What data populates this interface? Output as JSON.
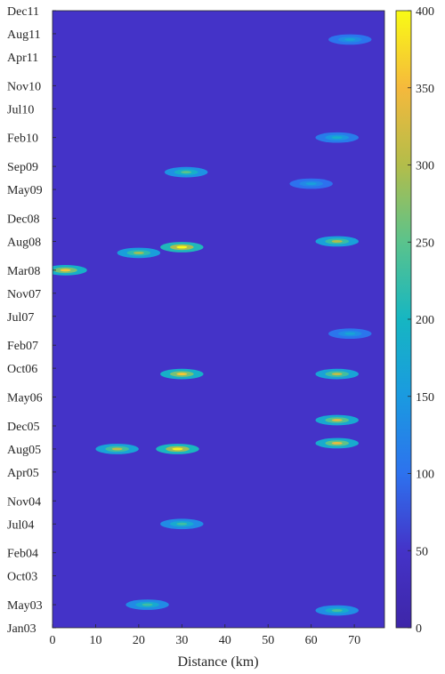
{
  "chart_data": {
    "type": "heatmap",
    "title": "",
    "xlabel": "Distance (km)",
    "ylabel": "",
    "xlim": [
      0,
      77
    ],
    "ylim": [
      "Jan03",
      "Dec11"
    ],
    "x_ticks": [
      0,
      10,
      20,
      30,
      40,
      50,
      60,
      70
    ],
    "y_ticks": [
      "Jan03",
      "May03",
      "Oct03",
      "Feb04",
      "Jul04",
      "Nov04",
      "Apr05",
      "Aug05",
      "Dec05",
      "May06",
      "Oct06",
      "Feb07",
      "Jul07",
      "Nov07",
      "Mar08",
      "Aug08",
      "Dec08",
      "May09",
      "Sep09",
      "Feb10",
      "Jul10",
      "Nov10",
      "Apr11",
      "Aug11",
      "Dec11"
    ],
    "colorbar": {
      "min": 0,
      "max": 400,
      "ticks": [
        0,
        50,
        100,
        150,
        200,
        250,
        300,
        350,
        400
      ],
      "colormap": "parula"
    },
    "background_value": 50,
    "hotspots": [
      {
        "x": 29,
        "y": "Aug05",
        "value": 390
      },
      {
        "x": 15,
        "y": "Aug05",
        "value": 310
      },
      {
        "x": 66,
        "y": "Sep05",
        "value": 340
      },
      {
        "x": 66,
        "y": "Jan06",
        "value": 330
      },
      {
        "x": 30,
        "y": "Sep06",
        "value": 360
      },
      {
        "x": 66,
        "y": "Sep06",
        "value": 310
      },
      {
        "x": 30,
        "y": "Jul08",
        "value": 400
      },
      {
        "x": 20,
        "y": "Jun08",
        "value": 290
      },
      {
        "x": 66,
        "y": "Aug08",
        "value": 300
      },
      {
        "x": 3,
        "y": "Mar08",
        "value": 360
      },
      {
        "x": 31,
        "y": "Aug09",
        "value": 250
      },
      {
        "x": 30,
        "y": "Jul04",
        "value": 230
      },
      {
        "x": 66,
        "y": "Apr03",
        "value": 240
      },
      {
        "x": 22,
        "y": "May03",
        "value": 230
      },
      {
        "x": 69,
        "y": "Jul11",
        "value": 170
      },
      {
        "x": 66,
        "y": "Feb10",
        "value": 190
      },
      {
        "x": 60,
        "y": "Jun09",
        "value": 160
      },
      {
        "x": 69,
        "y": "Apr07",
        "value": 170
      }
    ]
  }
}
